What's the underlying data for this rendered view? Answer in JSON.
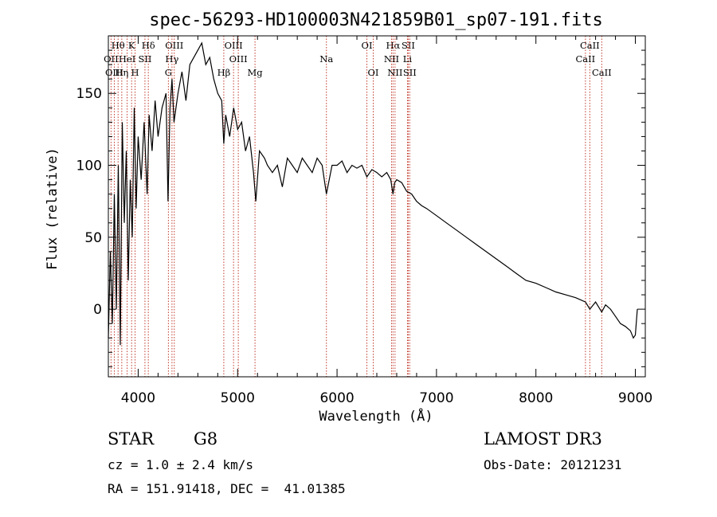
{
  "chart_data": {
    "type": "line",
    "title": "spec-56293-HD100003N421859B01_sp07-191.fits",
    "xlabel": "Wavelength (Å)",
    "ylabel": "Flux (relative)",
    "xlim": [
      3700,
      9100
    ],
    "ylim": [
      -47,
      190
    ],
    "x_ticks": [
      4000,
      5000,
      6000,
      7000,
      8000,
      9000
    ],
    "y_ticks": [
      0,
      50,
      100,
      150
    ],
    "grid": false,
    "spectrum": {
      "x": [
        3700,
        3720,
        3740,
        3760,
        3780,
        3800,
        3820,
        3840,
        3860,
        3880,
        3900,
        3920,
        3940,
        3960,
        3980,
        4000,
        4030,
        4060,
        4090,
        4110,
        4140,
        4170,
        4200,
        4240,
        4280,
        4300,
        4320,
        4340,
        4360,
        4400,
        4440,
        4480,
        4520,
        4560,
        4600,
        4640,
        4680,
        4720,
        4760,
        4800,
        4840,
        4861,
        4880,
        4920,
        4960,
        5000,
        5040,
        5080,
        5120,
        5160,
        5183,
        5220,
        5270,
        5300,
        5350,
        5400,
        5450,
        5500,
        5550,
        5600,
        5650,
        5700,
        5750,
        5800,
        5850,
        5893,
        5950,
        6000,
        6050,
        6100,
        6150,
        6200,
        6250,
        6300,
        6350,
        6400,
        6450,
        6500,
        6540,
        6563,
        6580,
        6600,
        6650,
        6700,
        6750,
        6800,
        6850,
        6900,
        7000,
        7100,
        7200,
        7300,
        7400,
        7500,
        7600,
        7700,
        7800,
        7900,
        8000,
        8100,
        8200,
        8300,
        8400,
        8498,
        8542,
        8600,
        8662,
        8700,
        8750,
        8800,
        8850,
        8900,
        8950,
        8980,
        9000,
        9020
      ],
      "y": [
        -20,
        40,
        -10,
        80,
        0,
        100,
        -25,
        130,
        60,
        110,
        20,
        90,
        50,
        140,
        70,
        120,
        90,
        130,
        80,
        135,
        110,
        145,
        120,
        140,
        150,
        75,
        140,
        160,
        130,
        150,
        165,
        145,
        170,
        175,
        180,
        185,
        170,
        175,
        160,
        150,
        145,
        115,
        135,
        120,
        140,
        125,
        130,
        110,
        120,
        95,
        75,
        110,
        105,
        100,
        95,
        100,
        85,
        105,
        100,
        95,
        105,
        100,
        95,
        105,
        100,
        80,
        100,
        100,
        103,
        95,
        100,
        98,
        100,
        92,
        97,
        95,
        92,
        95,
        90,
        80,
        88,
        90,
        88,
        82,
        80,
        75,
        72,
        70,
        65,
        60,
        55,
        50,
        45,
        40,
        35,
        30,
        25,
        20,
        18,
        15,
        12,
        10,
        8,
        5,
        0,
        5,
        -2,
        3,
        0,
        -5,
        -10,
        -12,
        -15,
        -20,
        -18,
        0
      ]
    },
    "lines": [
      {
        "name": "Hθ",
        "wave": 3798,
        "row": 1
      },
      {
        "name": "OII",
        "wave": 3727,
        "row": 2
      },
      {
        "name": "OIII",
        "wave": 3760,
        "row": 3
      },
      {
        "name": "K",
        "wave": 3934,
        "row": 1
      },
      {
        "name": "HeI",
        "wave": 3889,
        "row": 2
      },
      {
        "name": "Hη",
        "wave": 3835,
        "row": 3
      },
      {
        "name": "SII",
        "wave": 4068,
        "row": 2
      },
      {
        "name": "H",
        "wave": 3969,
        "row": 3
      },
      {
        "name": "Hδ",
        "wave": 4102,
        "row": 1
      },
      {
        "name": "OIII",
        "wave": 4363,
        "row": 1
      },
      {
        "name": "Hγ",
        "wave": 4340,
        "row": 2
      },
      {
        "name": "G",
        "wave": 4304,
        "row": 3
      },
      {
        "name": "Hβ",
        "wave": 4861,
        "row": 3
      },
      {
        "name": "OIII",
        "wave": 4959,
        "row": 1
      },
      {
        "name": "OIII",
        "wave": 5007,
        "row": 2
      },
      {
        "name": "Mg",
        "wave": 5175,
        "row": 3
      },
      {
        "name": "Na",
        "wave": 5893,
        "row": 2
      },
      {
        "name": "OI",
        "wave": 6300,
        "row": 1
      },
      {
        "name": "OI",
        "wave": 6364,
        "row": 3
      },
      {
        "name": "Hα",
        "wave": 6563,
        "row": 1
      },
      {
        "name": "NII",
        "wave": 6548,
        "row": 2
      },
      {
        "name": "NII",
        "wave": 6583,
        "row": 3
      },
      {
        "name": "SII",
        "wave": 6716,
        "row": 1
      },
      {
        "name": "Li",
        "wave": 6708,
        "row": 2
      },
      {
        "name": "SII",
        "wave": 6731,
        "row": 3
      },
      {
        "name": "CaII",
        "wave": 8542,
        "row": 1
      },
      {
        "name": "CaII",
        "wave": 8498,
        "row": 2
      },
      {
        "name": "CaII",
        "wave": 8662,
        "row": 3
      }
    ]
  },
  "info": {
    "class": "STAR",
    "subclass": "G8",
    "survey": "LAMOST DR3",
    "cz": "cz = 1.0 ± 2.4 km/s",
    "obs_date": "Obs-Date: 20121231",
    "coords": "RA = 151.91418, DEC =  41.01385"
  },
  "colors": {
    "line_marker": "#c0392b",
    "spectrum": "#000000",
    "frame": "#000000"
  }
}
